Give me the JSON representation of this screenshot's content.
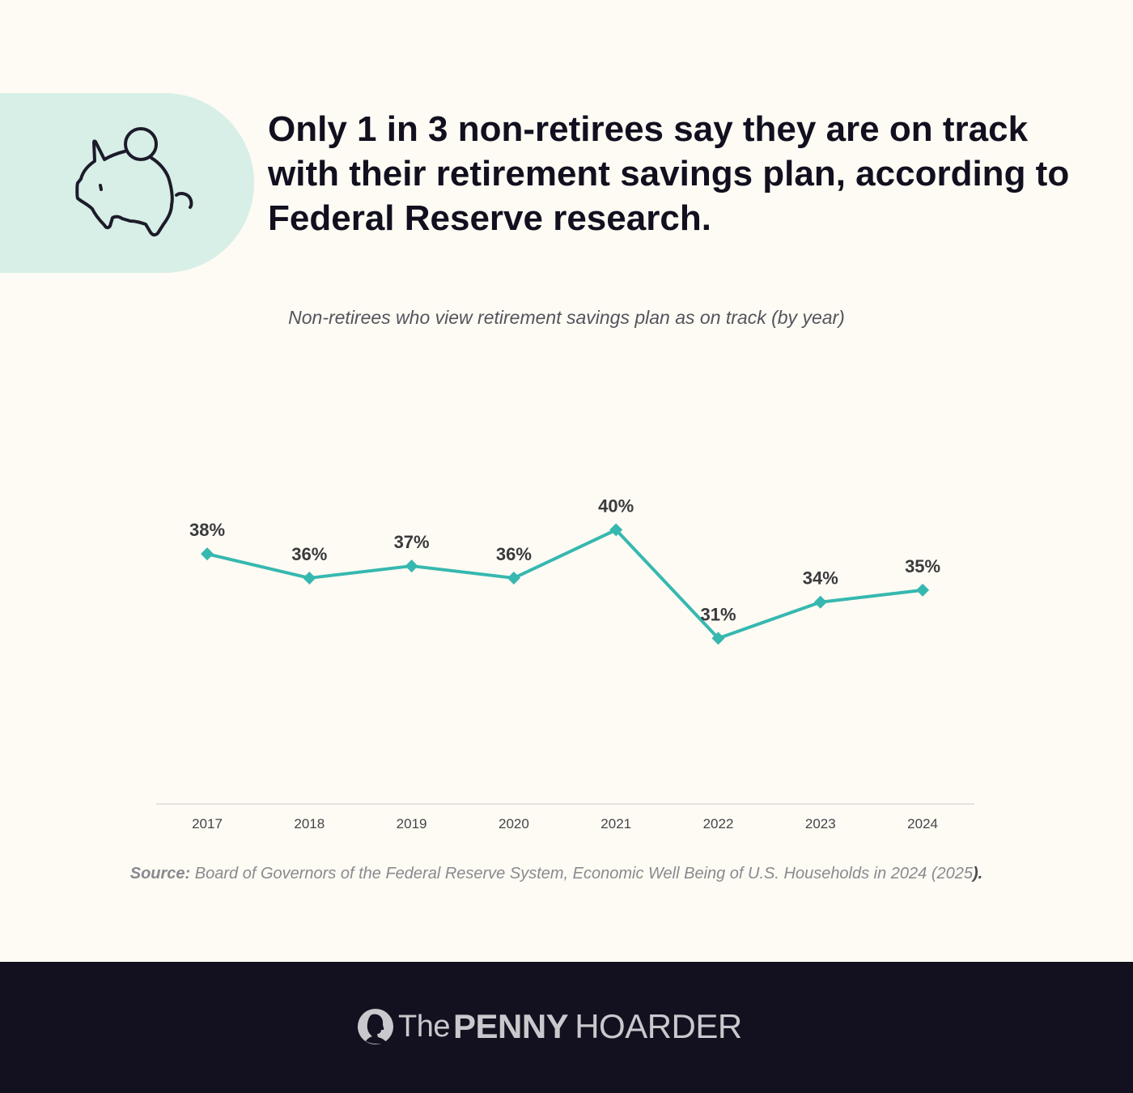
{
  "header": {
    "headline": "Only 1 in 3 non-retirees say they are on track with their retirement savings plan, according to Federal Reserve research.",
    "icon": "piggy-bank-icon"
  },
  "chart_data": {
    "type": "line",
    "title": "Non-retirees who view retirement savings plan as on track (by year)",
    "categories": [
      "2017",
      "2018",
      "2019",
      "2020",
      "2021",
      "2022",
      "2023",
      "2024"
    ],
    "values": [
      38,
      36,
      37,
      36,
      40,
      31,
      34,
      35
    ],
    "data_labels": [
      "38%",
      "36%",
      "37%",
      "36%",
      "40%",
      "31%",
      "34%",
      "35%"
    ],
    "xlabel": "",
    "ylabel": "",
    "ylim": [
      17.25,
      45
    ],
    "grid": false,
    "legend": "none",
    "line_color": "#36b8b0",
    "marker": "diamond"
  },
  "source": {
    "label": "Source:",
    "text": " Board of Governors of the Federal Reserve System, Economic Well Being of U.S. Households in 2024 (2025",
    "end": ")."
  },
  "footer": {
    "logo_icon": "penny-portrait-icon",
    "brand_the": "The",
    "brand_penny": "PENNY",
    "brand_hoarder": "HOARDER"
  },
  "colors": {
    "background": "#fdfbf3",
    "icon_pill": "#d7efe7",
    "headline": "#12101f",
    "accent_line": "#36b8b0",
    "footer": "#13111f"
  }
}
